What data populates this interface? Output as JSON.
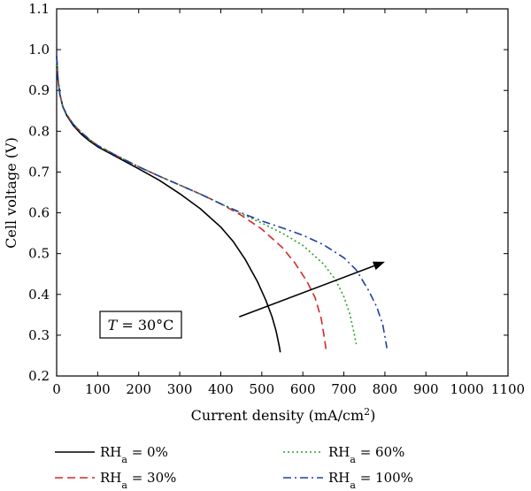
{
  "chart_data": {
    "type": "line",
    "xlabel": "Current density (mA/cm²)",
    "xlabel_parts": {
      "main": "Current density (mA/cm",
      "sup": "2",
      "tail": ")"
    },
    "ylabel": "Cell voltage (V)",
    "xlim": [
      0,
      1100
    ],
    "ylim": [
      0.2,
      1.1
    ],
    "xticks": [
      0,
      100,
      200,
      300,
      400,
      500,
      600,
      700,
      800,
      900,
      1000,
      1100
    ],
    "yticks": [
      0.2,
      0.3,
      0.4,
      0.5,
      0.6,
      0.7,
      0.8,
      0.9,
      1.0,
      1.1
    ],
    "ytick_labels": [
      "0.2",
      "0.3",
      "0.4",
      "0.5",
      "0.6",
      "0.7",
      "0.8",
      "0.9",
      "1.0",
      "1.1"
    ],
    "annotation": {
      "italic": "T",
      "rest": " = 30°C"
    },
    "arrow": {
      "from": [
        445,
        0.345
      ],
      "to": [
        800,
        0.48
      ]
    },
    "grid": false,
    "legend_position": "bottom",
    "series": [
      {
        "name": "RHa = 0%",
        "label_main": "RH",
        "label_sub": "a",
        "label_rest": " = 0%",
        "color": "#000000",
        "dash": "solid",
        "x": [
          0,
          3,
          8,
          15,
          25,
          40,
          60,
          80,
          100,
          150,
          200,
          250,
          300,
          350,
          400,
          430,
          460,
          490,
          510,
          525,
          535,
          540,
          543,
          545
        ],
        "y": [
          0.985,
          0.93,
          0.89,
          0.86,
          0.838,
          0.815,
          0.793,
          0.776,
          0.762,
          0.735,
          0.708,
          0.68,
          0.647,
          0.61,
          0.565,
          0.53,
          0.485,
          0.43,
          0.385,
          0.345,
          0.31,
          0.285,
          0.27,
          0.258
        ]
      },
      {
        "name": "RHa = 30%",
        "label_main": "RH",
        "label_sub": "a",
        "label_rest": " = 30%",
        "color": "#d62728",
        "dash": "dashed",
        "x": [
          0,
          3,
          8,
          15,
          25,
          40,
          60,
          80,
          100,
          150,
          200,
          250,
          300,
          350,
          400,
          450,
          500,
          550,
          580,
          610,
          630,
          645,
          653,
          657
        ],
        "y": [
          0.985,
          0.93,
          0.89,
          0.86,
          0.84,
          0.818,
          0.797,
          0.78,
          0.765,
          0.738,
          0.713,
          0.69,
          0.668,
          0.646,
          0.622,
          0.594,
          0.56,
          0.515,
          0.478,
          0.432,
          0.392,
          0.34,
          0.29,
          0.262
        ]
      },
      {
        "name": "RHa = 60%",
        "label_main": "RH",
        "label_sub": "a",
        "label_rest": " = 60%",
        "color": "#2ca02c",
        "dash": "dotted",
        "x": [
          0,
          3,
          8,
          15,
          25,
          40,
          60,
          80,
          100,
          150,
          200,
          250,
          300,
          350,
          400,
          450,
          500,
          550,
          600,
          650,
          680,
          700,
          715,
          725,
          730
        ],
        "y": [
          0.985,
          0.93,
          0.89,
          0.86,
          0.84,
          0.818,
          0.797,
          0.78,
          0.765,
          0.738,
          0.713,
          0.69,
          0.668,
          0.646,
          0.622,
          0.598,
          0.575,
          0.55,
          0.52,
          0.475,
          0.435,
          0.395,
          0.35,
          0.305,
          0.278
        ]
      },
      {
        "name": "RHa = 100%",
        "label_main": "RH",
        "label_sub": "a",
        "label_rest": " = 100%",
        "color": "#1f3fa8",
        "dash": "dashdot",
        "x": [
          0,
          3,
          8,
          15,
          25,
          40,
          60,
          80,
          100,
          150,
          200,
          250,
          300,
          350,
          400,
          450,
          500,
          550,
          600,
          650,
          700,
          730,
          760,
          780,
          795,
          805
        ],
        "y": [
          0.985,
          0.93,
          0.89,
          0.86,
          0.84,
          0.818,
          0.797,
          0.78,
          0.765,
          0.738,
          0.713,
          0.69,
          0.668,
          0.646,
          0.622,
          0.6,
          0.58,
          0.563,
          0.545,
          0.522,
          0.49,
          0.46,
          0.41,
          0.37,
          0.325,
          0.268
        ]
      }
    ]
  }
}
